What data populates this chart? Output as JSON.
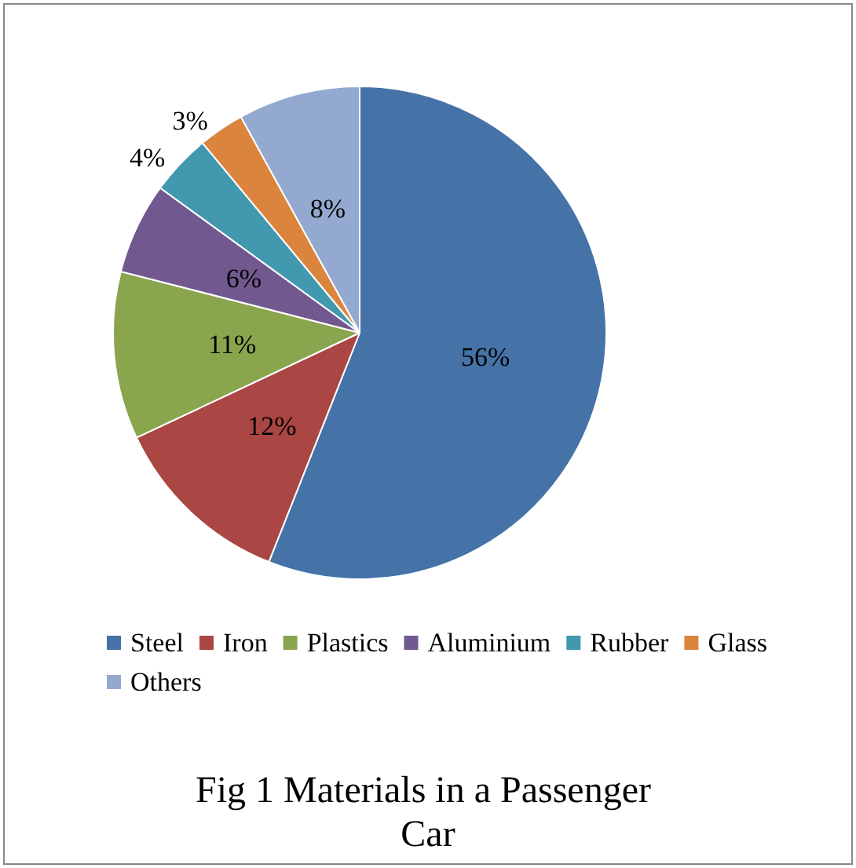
{
  "chart_data": {
    "type": "pie",
    "title": "Fig 1 Materials in a Passenger Car",
    "categories": [
      "Steel",
      "Iron",
      "Plastics",
      "Aluminium",
      "Rubber",
      "Glass",
      "Others"
    ],
    "values": [
      56,
      12,
      11,
      6,
      4,
      3,
      8
    ],
    "colors": [
      "#4572a7",
      "#aa4643",
      "#89a54e",
      "#71588f",
      "#4198af",
      "#db843d",
      "#93a9cf"
    ],
    "value_labels": [
      "56%",
      "12%",
      "11%",
      "6%",
      "4%",
      "3%",
      "8%"
    ],
    "legend": "bottom"
  }
}
